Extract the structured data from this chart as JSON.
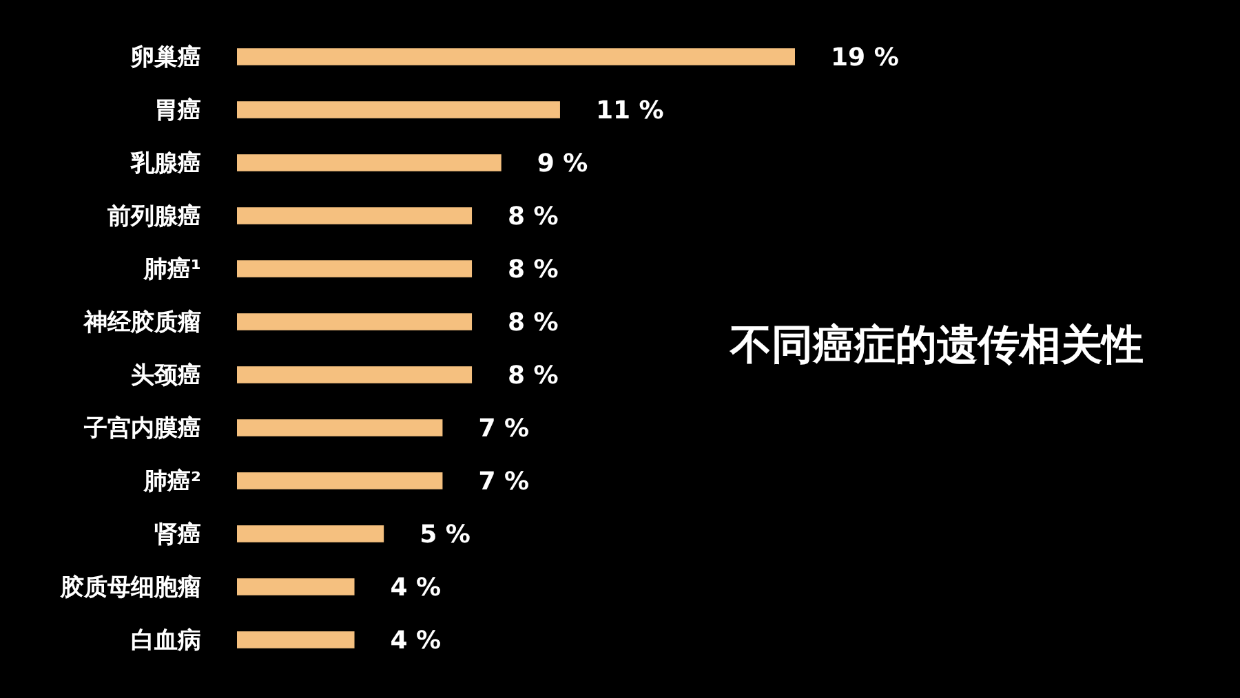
{
  "chart_data": {
    "type": "bar",
    "orientation": "horizontal",
    "title": "不同癌症的遗传相关性",
    "categories": [
      "卵巢癌",
      "胃癌",
      "乳腺癌",
      "前列腺癌",
      "肺癌¹",
      "神经胶质瘤",
      "头颈癌",
      "子宫内膜癌",
      "肺癌²",
      "肾癌",
      "胶质母细胞瘤",
      "白血病"
    ],
    "values": [
      19,
      11,
      9,
      8,
      8,
      8,
      8,
      7,
      7,
      5,
      4,
      4
    ],
    "value_labels": [
      "19 %",
      "11 %",
      "9 %",
      "8 %",
      "8 %",
      "8 %",
      "8 %",
      "7 %",
      "7 %",
      "5 %",
      "4 %",
      "4 %"
    ],
    "color": "#f5c07f"
  }
}
